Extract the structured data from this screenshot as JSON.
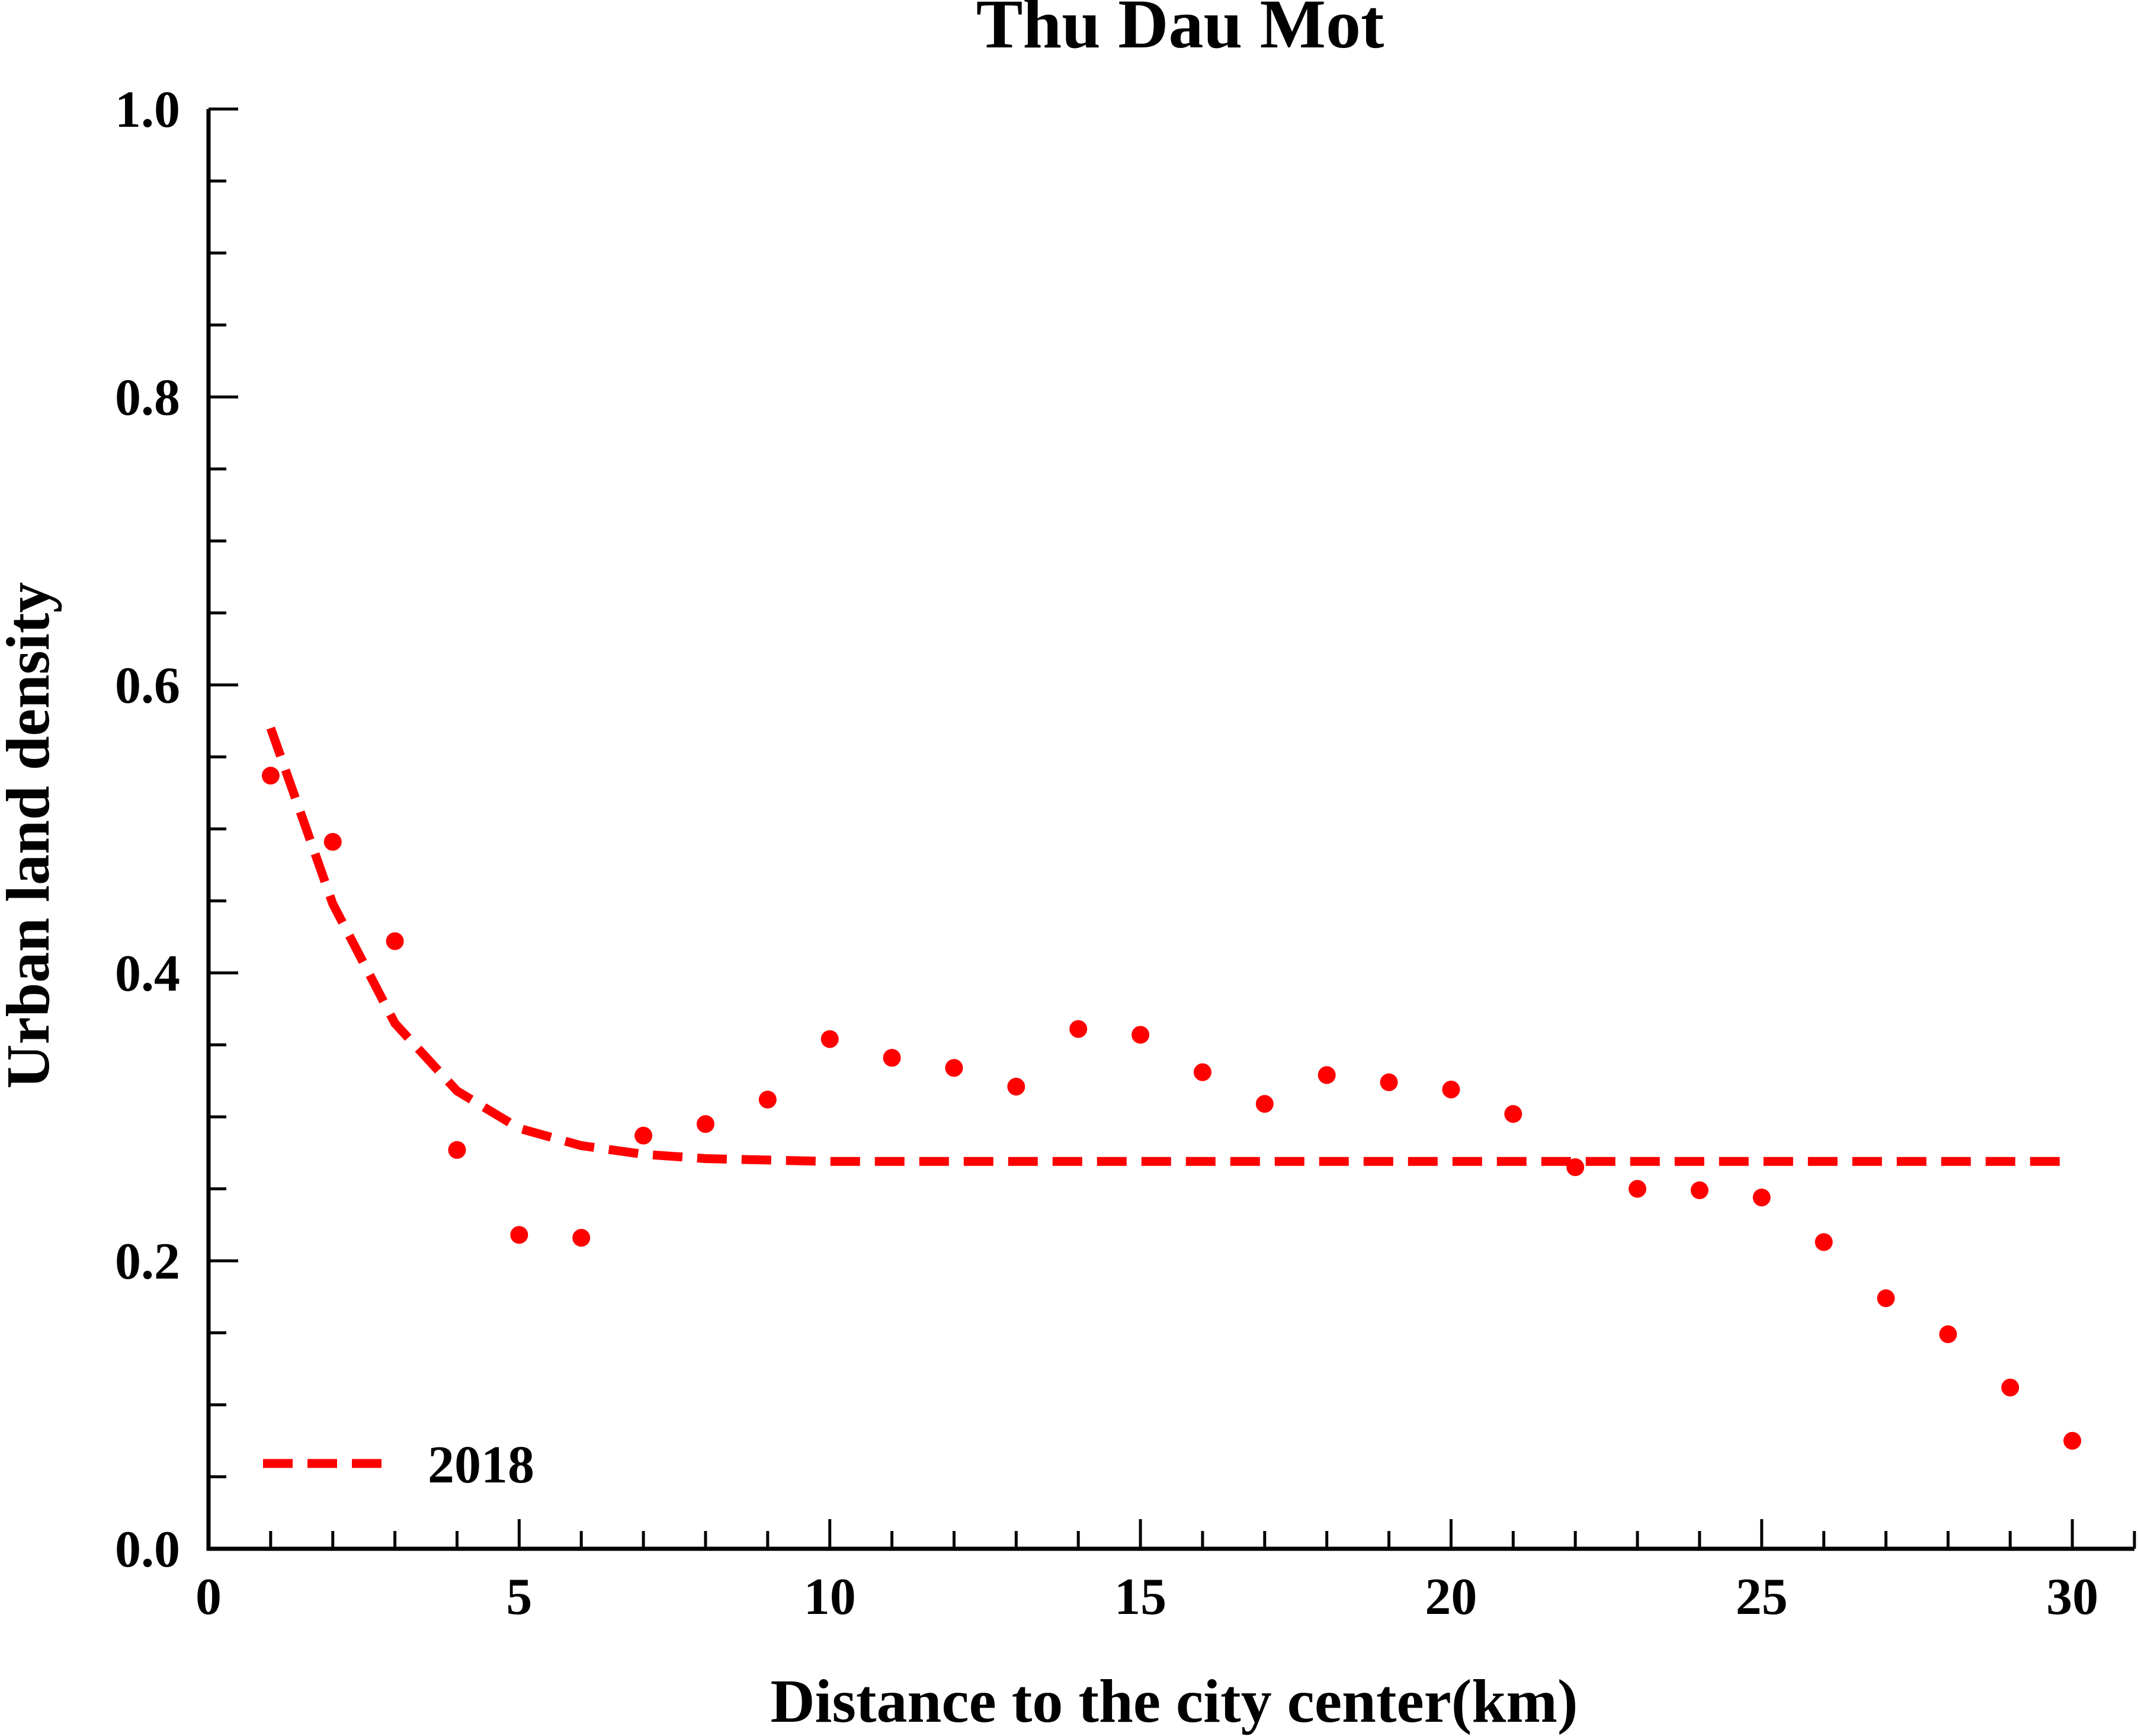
{
  "chart_data": {
    "type": "scatter",
    "title": "Thu Dau Mot",
    "xlabel": "Distance to the city center(km)",
    "ylabel": "Urban land density",
    "xlim": [
      0,
      31
    ],
    "ylim": [
      0,
      1.0
    ],
    "x_ticks": [
      0,
      5,
      10,
      15,
      20,
      25,
      30
    ],
    "x_tick_labels": [
      "0",
      "5",
      "10",
      "15",
      "20",
      "25",
      "30"
    ],
    "y_ticks": [
      0.0,
      0.2,
      0.4,
      0.6,
      0.8,
      1.0
    ],
    "y_tick_labels": [
      "0.0",
      "0.2",
      "0.4",
      "0.6",
      "0.8",
      "1.0"
    ],
    "grid": false,
    "legend_position": "bottom-left",
    "color": "#ff0000",
    "points": {
      "x": [
        1,
        2,
        3,
        4,
        5,
        6,
        7,
        8,
        9,
        10,
        11,
        12,
        13,
        14,
        15,
        16,
        17,
        18,
        19,
        20,
        21,
        22,
        23,
        24,
        25,
        26,
        27,
        28,
        29,
        30
      ],
      "y": [
        0.537,
        0.491,
        0.422,
        0.277,
        0.218,
        0.216,
        0.287,
        0.295,
        0.312,
        0.354,
        0.341,
        0.334,
        0.321,
        0.361,
        0.357,
        0.331,
        0.309,
        0.329,
        0.324,
        0.319,
        0.302,
        0.265,
        0.25,
        0.249,
        0.244,
        0.213,
        0.174,
        0.149,
        0.112,
        0.075
      ]
    },
    "fit": {
      "name": "2018",
      "style": "dashed",
      "x": [
        1,
        2,
        3,
        4,
        5,
        6,
        7,
        8,
        9,
        10,
        12,
        14,
        16,
        18,
        20,
        22,
        24,
        26,
        28,
        30
      ],
      "y": [
        0.57,
        0.448,
        0.365,
        0.318,
        0.292,
        0.28,
        0.274,
        0.271,
        0.27,
        0.269,
        0.269,
        0.269,
        0.269,
        0.269,
        0.269,
        0.269,
        0.269,
        0.269,
        0.269,
        0.269
      ]
    }
  }
}
